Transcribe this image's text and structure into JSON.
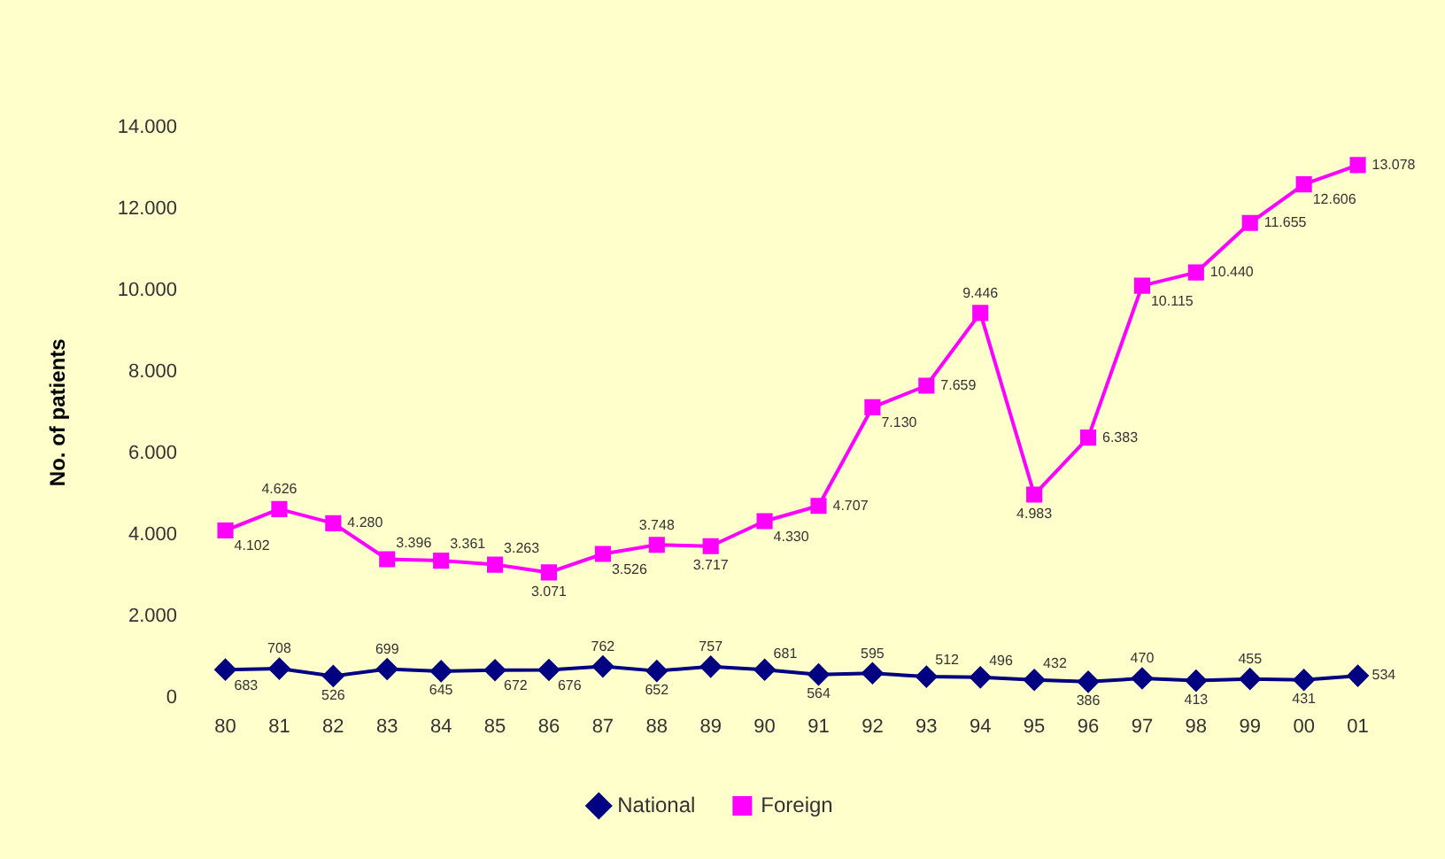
{
  "chart_data": {
    "type": "line",
    "ylabel": "No. of patients",
    "categories": [
      "80",
      "81",
      "82",
      "83",
      "84",
      "85",
      "86",
      "87",
      "88",
      "89",
      "90",
      "91",
      "92",
      "93",
      "94",
      "95",
      "96",
      "97",
      "98",
      "99",
      "00",
      "01"
    ],
    "series": [
      {
        "name": "National",
        "color": "#000080",
        "marker": "diamond",
        "values": [
          683,
          708,
          526,
          699,
          645,
          672,
          676,
          762,
          652,
          757,
          681,
          564,
          595,
          512,
          496,
          432,
          386,
          470,
          413,
          455,
          431,
          534
        ],
        "value_labels": [
          "683",
          "708",
          "526",
          "699",
          "645",
          "672",
          "676",
          "762",
          "652",
          "757",
          "681",
          "564",
          "595",
          "512",
          "496",
          "432",
          "386",
          "470",
          "413",
          "455",
          "431",
          "534"
        ]
      },
      {
        "name": "Foreign",
        "color": "#ff00ff",
        "marker": "square",
        "values": [
          4102,
          4626,
          4280,
          3396,
          3361,
          3263,
          3071,
          3526,
          3748,
          3717,
          4330,
          4707,
          7130,
          7659,
          9446,
          4983,
          6383,
          10115,
          10440,
          11655,
          12606,
          13078
        ],
        "value_labels": [
          "4.102",
          "4.626",
          "4.280",
          "3.396",
          "3.361",
          "3.263",
          "3.071",
          "3.526",
          "3.748",
          "3.717",
          "4.330",
          "4.707",
          "7.130",
          "7.659",
          "9.446",
          "4.983",
          "6.383",
          "10.115",
          "10.440",
          "11.655",
          "12.606",
          "13.078"
        ]
      }
    ],
    "ylim": [
      0,
      14000
    ],
    "yticks": [
      0,
      {
        "value": 2000,
        "label": "2.000"
      },
      {
        "value": 4000,
        "label": "4.000"
      },
      {
        "value": 6000,
        "label": "6.000"
      },
      {
        "value": 8000,
        "label": "8.000"
      },
      {
        "value": 10000,
        "label": "10.000"
      },
      {
        "value": 12000,
        "label": "12.000"
      },
      {
        "value": 14000,
        "label": "14.000"
      }
    ],
    "grid": false,
    "legend": "bottom"
  }
}
